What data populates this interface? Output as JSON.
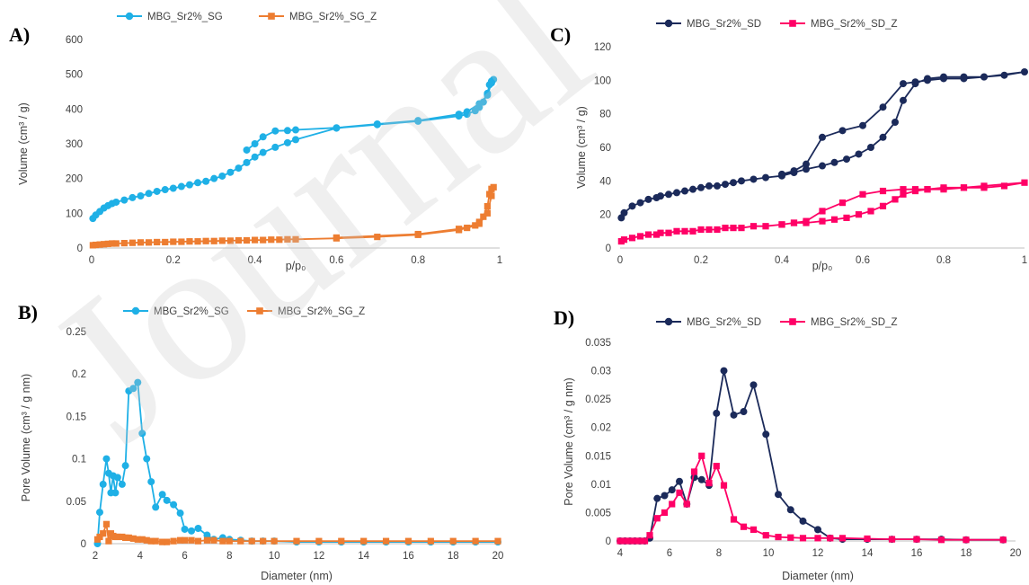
{
  "watermark": "Journal",
  "chart_data": [
    {
      "panel": "A)",
      "type": "line",
      "xlabel": "p/p₀",
      "ylabel": "Volume (cm³ / g)",
      "xlim": [
        0,
        1
      ],
      "xticks": [
        0,
        0.2,
        0.4,
        0.6,
        0.8,
        1
      ],
      "ylim": [
        0,
        600
      ],
      "yticks": [
        0,
        100,
        200,
        300,
        400,
        500,
        600
      ],
      "grid": false,
      "legend": "top",
      "series": [
        {
          "name": "MBG_Sr2%_SG",
          "color": "#1fb0e6",
          "marker": "circle",
          "x": [
            0.003,
            0.01,
            0.02,
            0.03,
            0.04,
            0.05,
            0.06,
            0.08,
            0.1,
            0.12,
            0.14,
            0.16,
            0.18,
            0.2,
            0.22,
            0.24,
            0.26,
            0.28,
            0.3,
            0.32,
            0.34,
            0.36,
            0.38,
            0.4,
            0.42,
            0.45,
            0.48,
            0.5,
            0.6,
            0.7,
            0.8,
            0.9,
            0.92,
            0.94,
            0.95,
            0.96,
            0.97,
            0.975,
            0.98,
            0.985,
            0.98,
            0.97,
            0.95,
            0.92,
            0.9,
            0.8,
            0.7,
            0.6,
            0.5,
            0.48,
            0.45,
            0.42,
            0.4,
            0.38
          ],
          "y": [
            85,
            95,
            105,
            115,
            122,
            128,
            132,
            138,
            145,
            150,
            157,
            163,
            168,
            172,
            177,
            182,
            188,
            192,
            200,
            207,
            218,
            230,
            246,
            262,
            275,
            290,
            303,
            312,
            345,
            355,
            365,
            380,
            385,
            395,
            405,
            420,
            445,
            470,
            480,
            485,
            475,
            440,
            415,
            392,
            385,
            367,
            357,
            346,
            340,
            338,
            337,
            320,
            300,
            282
          ]
        },
        {
          "name": "MBG_Sr2%_SG_Z",
          "color": "#ed7d31",
          "marker": "square",
          "x": [
            0.003,
            0.01,
            0.02,
            0.03,
            0.04,
            0.05,
            0.06,
            0.08,
            0.1,
            0.12,
            0.14,
            0.16,
            0.18,
            0.2,
            0.22,
            0.24,
            0.26,
            0.28,
            0.3,
            0.32,
            0.34,
            0.36,
            0.38,
            0.4,
            0.42,
            0.44,
            0.46,
            0.48,
            0.5,
            0.6,
            0.7,
            0.8,
            0.9,
            0.92,
            0.94,
            0.95,
            0.96,
            0.97,
            0.975,
            0.98,
            0.985,
            0.98,
            0.97,
            0.95,
            0.9,
            0.8,
            0.6
          ],
          "y": [
            8,
            9,
            10,
            11,
            12,
            13,
            13,
            14,
            15,
            16,
            16,
            17,
            17,
            18,
            18,
            19,
            19,
            20,
            20,
            21,
            21,
            22,
            22,
            23,
            23,
            24,
            24,
            25,
            25,
            28,
            32,
            38,
            52,
            58,
            65,
            75,
            90,
            120,
            155,
            170,
            175,
            150,
            100,
            70,
            55,
            40,
            30
          ]
        }
      ]
    },
    {
      "panel": "C)",
      "type": "line",
      "xlabel": "p/p₀",
      "ylabel": "Volume (cm³ / g)",
      "xlim": [
        0,
        1
      ],
      "xticks": [
        0,
        0.2,
        0.4,
        0.6,
        0.8,
        1
      ],
      "ylim": [
        0,
        120
      ],
      "yticks": [
        0,
        20,
        40,
        60,
        80,
        100,
        120
      ],
      "grid": false,
      "legend": "top",
      "series": [
        {
          "name": "MBG_Sr2%_SD",
          "color": "#1b2a5a",
          "marker": "circle",
          "x": [
            0.003,
            0.01,
            0.03,
            0.05,
            0.07,
            0.09,
            0.1,
            0.12,
            0.14,
            0.16,
            0.18,
            0.2,
            0.22,
            0.24,
            0.26,
            0.28,
            0.3,
            0.33,
            0.36,
            0.4,
            0.43,
            0.46,
            0.5,
            0.53,
            0.56,
            0.59,
            0.62,
            0.65,
            0.68,
            0.7,
            0.73,
            0.76,
            0.8,
            0.85,
            0.9,
            0.95,
            1.0,
            0.9,
            0.85,
            0.8,
            0.76,
            0.73,
            0.7,
            0.65,
            0.6,
            0.55,
            0.5,
            0.46,
            0.43,
            0.4
          ],
          "y": [
            18,
            21,
            25,
            27,
            29,
            30,
            31,
            32,
            33,
            34,
            35,
            36,
            37,
            37,
            38,
            39,
            40,
            41,
            42,
            43,
            45,
            47,
            49,
            51,
            53,
            56,
            60,
            66,
            75,
            88,
            98,
            101,
            102,
            102,
            102,
            103,
            105,
            102,
            101,
            101,
            100,
            99,
            98,
            84,
            73,
            70,
            66,
            50,
            46,
            44
          ]
        },
        {
          "name": "MBG_Sr2%_SD_Z",
          "color": "#ff0066",
          "marker": "square",
          "x": [
            0.003,
            0.01,
            0.03,
            0.05,
            0.07,
            0.09,
            0.1,
            0.12,
            0.14,
            0.16,
            0.18,
            0.2,
            0.22,
            0.24,
            0.26,
            0.28,
            0.3,
            0.33,
            0.36,
            0.4,
            0.43,
            0.46,
            0.5,
            0.53,
            0.56,
            0.59,
            0.62,
            0.65,
            0.68,
            0.7,
            0.73,
            0.76,
            0.8,
            0.85,
            0.9,
            0.95,
            1.0,
            0.9,
            0.85,
            0.8,
            0.76,
            0.73,
            0.7,
            0.65,
            0.6,
            0.55,
            0.5,
            0.46,
            0.43,
            0.4
          ],
          "y": [
            4,
            5,
            6,
            7,
            8,
            8,
            9,
            9,
            10,
            10,
            10,
            11,
            11,
            11,
            12,
            12,
            12,
            13,
            13,
            14,
            15,
            15,
            16,
            17,
            18,
            20,
            22,
            25,
            29,
            32,
            34,
            35,
            35,
            36,
            36,
            37,
            39,
            37,
            36,
            36,
            35,
            35,
            35,
            34,
            32,
            27,
            22,
            16,
            15,
            14
          ]
        }
      ]
    },
    {
      "panel": "B)",
      "type": "line",
      "xlabel": "Diameter (nm)",
      "ylabel": "Pore Volume (cm³ / g nm)",
      "xlim": [
        2,
        20
      ],
      "xticks": [
        2,
        4,
        6,
        8,
        10,
        12,
        14,
        16,
        18,
        20
      ],
      "ylim": [
        0,
        0.25
      ],
      "yticks": [
        0,
        0.05,
        0.1,
        0.15,
        0.2,
        0.25
      ],
      "grid": false,
      "legend": "top",
      "series": [
        {
          "name": "MBG_Sr2%_SG",
          "color": "#1fb0e6",
          "marker": "circle",
          "x": [
            2.1,
            2.2,
            2.35,
            2.5,
            2.6,
            2.7,
            2.8,
            2.9,
            3.0,
            3.2,
            3.35,
            3.5,
            3.7,
            3.9,
            4.1,
            4.3,
            4.5,
            4.7,
            5.0,
            5.2,
            5.5,
            5.8,
            6.0,
            6.3,
            6.6,
            7.0,
            7.3,
            7.7,
            8.0,
            8.5,
            9.0,
            9.5,
            10.0,
            11.0,
            12.0,
            13.0,
            14.0,
            15.0,
            16.0,
            17.0,
            18.0,
            19.0,
            20.0
          ],
          "y": [
            0,
            0.037,
            0.07,
            0.1,
            0.083,
            0.06,
            0.08,
            0.06,
            0.078,
            0.07,
            0.092,
            0.18,
            0.183,
            0.19,
            0.13,
            0.1,
            0.073,
            0.043,
            0.058,
            0.051,
            0.046,
            0.036,
            0.017,
            0.015,
            0.018,
            0.01,
            0.005,
            0.007,
            0.005,
            0.004,
            0.003,
            0.003,
            0.003,
            0.002,
            0.002,
            0.002,
            0.002,
            0.002,
            0.002,
            0.002,
            0.002,
            0.002,
            0.002
          ]
        },
        {
          "name": "MBG_Sr2%_SG_Z",
          "color": "#ed7d31",
          "marker": "square",
          "x": [
            2.1,
            2.2,
            2.35,
            2.5,
            2.6,
            2.7,
            2.8,
            2.9,
            3.0,
            3.2,
            3.35,
            3.5,
            3.7,
            3.9,
            4.1,
            4.3,
            4.5,
            4.7,
            5.0,
            5.2,
            5.5,
            5.8,
            6.0,
            6.3,
            6.6,
            7.0,
            7.3,
            7.7,
            8.0,
            8.5,
            9.0,
            9.5,
            10.0,
            11.0,
            12.0,
            13.0,
            14.0,
            15.0,
            16.0,
            17.0,
            18.0,
            19.0,
            20.0
          ],
          "y": [
            0.005,
            0.008,
            0.012,
            0.023,
            0.003,
            0.012,
            0.009,
            0.008,
            0.008,
            0.008,
            0.007,
            0.007,
            0.006,
            0.005,
            0.005,
            0.004,
            0.003,
            0.003,
            0.002,
            0.002,
            0.003,
            0.004,
            0.004,
            0.004,
            0.003,
            0.004,
            0.004,
            0.003,
            0.003,
            0.003,
            0.003,
            0.003,
            0.003,
            0.003,
            0.003,
            0.003,
            0.003,
            0.003,
            0.003,
            0.003,
            0.003,
            0.003,
            0.003
          ]
        }
      ]
    },
    {
      "panel": "D)",
      "type": "line",
      "xlabel": "Diameter (nm)",
      "ylabel": "Pore Volume (cm³ / g nm)",
      "xlim": [
        4,
        20
      ],
      "xticks": [
        4,
        6,
        8,
        10,
        12,
        14,
        16,
        18,
        20
      ],
      "ylim": [
        0,
        0.035
      ],
      "yticks": [
        0,
        0.005,
        0.01,
        0.015,
        0.02,
        0.025,
        0.03,
        0.035
      ],
      "grid": false,
      "legend": "top",
      "series": [
        {
          "name": "MBG_Sr2%_SD",
          "color": "#1b2a5a",
          "marker": "circle",
          "x": [
            4.0,
            4.2,
            4.4,
            4.6,
            4.8,
            5.0,
            5.2,
            5.5,
            5.8,
            6.1,
            6.4,
            6.7,
            7.0,
            7.3,
            7.6,
            7.9,
            8.2,
            8.6,
            9.0,
            9.4,
            9.9,
            10.4,
            10.9,
            11.4,
            12.0,
            12.5,
            13.0,
            14.0,
            15.0,
            16.0,
            17.0,
            18.0,
            19.5
          ],
          "y": [
            0,
            0,
            0,
            0,
            0,
            0,
            0.0005,
            0.0075,
            0.008,
            0.009,
            0.0105,
            0.0065,
            0.0112,
            0.0108,
            0.0098,
            0.0225,
            0.03,
            0.0222,
            0.0228,
            0.0275,
            0.0188,
            0.0082,
            0.0055,
            0.0035,
            0.002,
            0.0005,
            0.0003,
            0.0003,
            0.0003,
            0.0003,
            0.0003,
            0.0002,
            0.0002
          ]
        },
        {
          "name": "MBG_Sr2%_SD_Z",
          "color": "#ff0066",
          "marker": "square",
          "x": [
            4.0,
            4.2,
            4.4,
            4.6,
            4.8,
            5.0,
            5.2,
            5.5,
            5.8,
            6.1,
            6.4,
            6.7,
            7.0,
            7.3,
            7.6,
            7.9,
            8.2,
            8.6,
            9.0,
            9.4,
            9.9,
            10.4,
            10.9,
            11.4,
            12.0,
            12.5,
            13.0,
            14.0,
            15.0,
            16.0,
            17.0,
            18.0,
            19.5
          ],
          "y": [
            0,
            0,
            0,
            0,
            0,
            0,
            0.001,
            0.004,
            0.005,
            0.0065,
            0.0085,
            0.0065,
            0.0122,
            0.015,
            0.0102,
            0.0132,
            0.0098,
            0.0038,
            0.0025,
            0.002,
            0.001,
            0.0007,
            0.0006,
            0.0005,
            0.0005,
            0.0005,
            0.0005,
            0.0004,
            0.0003,
            0.0003,
            0.0002,
            0.0002,
            0.0002
          ]
        }
      ]
    }
  ]
}
